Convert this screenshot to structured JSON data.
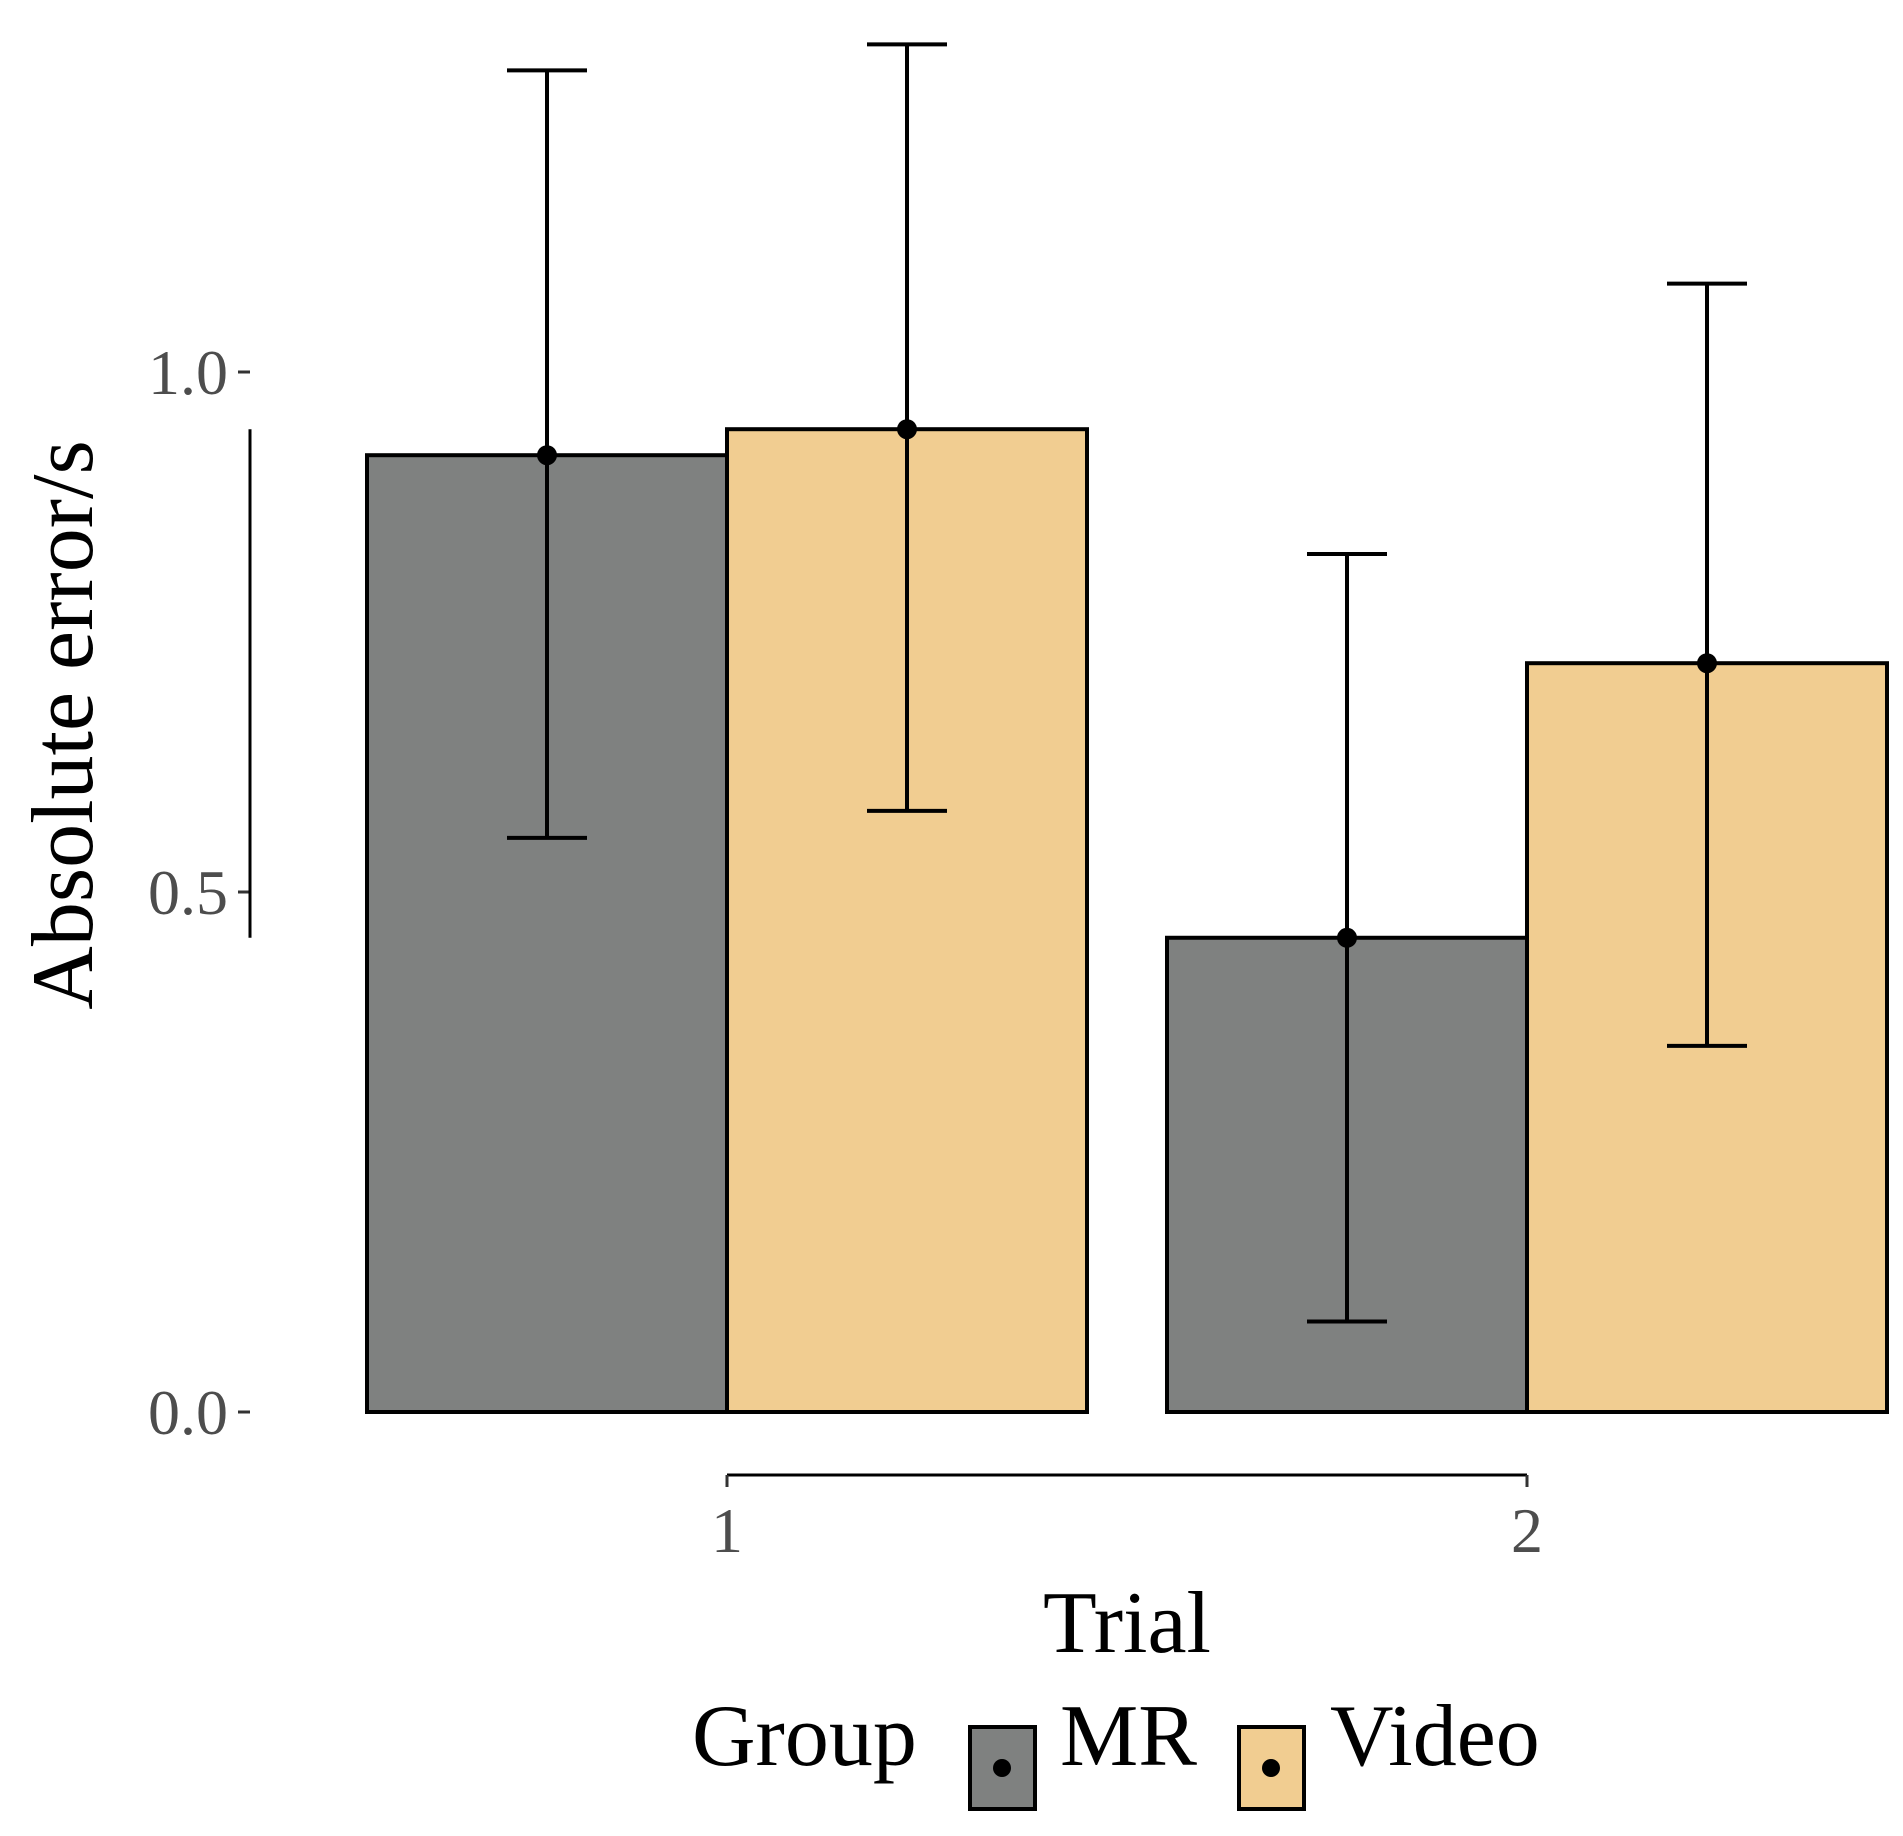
{
  "chart_data": {
    "type": "bar",
    "xlabel": "Trial",
    "ylabel": "Absolute error/s",
    "categories": [
      "1",
      "2"
    ],
    "ylim": [
      0,
      1.0
    ],
    "yticks": [
      0.0,
      0.5,
      1.0
    ],
    "ytick_labels": [
      "0.0",
      "0.5",
      "1.0"
    ],
    "grid": false,
    "legend": {
      "title": "Group",
      "position": "bottom",
      "entries": [
        "MR",
        "Video"
      ]
    },
    "series": [
      {
        "name": "MR",
        "color": "#7f8180",
        "values": [
          0.92,
          0.456
        ],
        "error_low": [
          0.552,
          0.087
        ],
        "error_high": [
          1.29,
          0.825
        ]
      },
      {
        "name": "Video",
        "color": "#f1cd91",
        "values": [
          0.945,
          0.72
        ],
        "error_low": [
          0.578,
          0.352
        ],
        "error_high": [
          1.315,
          1.085
        ]
      }
    ]
  }
}
